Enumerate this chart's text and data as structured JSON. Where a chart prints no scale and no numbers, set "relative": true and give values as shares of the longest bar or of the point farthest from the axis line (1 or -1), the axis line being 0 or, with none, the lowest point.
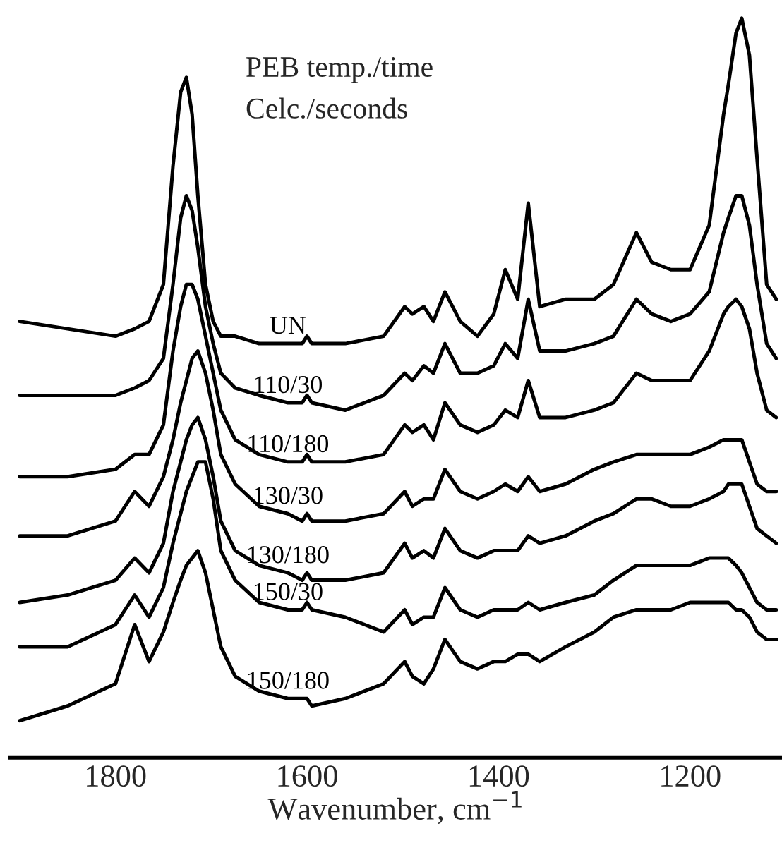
{
  "chart_data": {
    "type": "line",
    "relative": true,
    "xlabel": "Wavenumber, cm$^{−1}$",
    "annotations": [
      "PEB temp./time",
      "Celc./seconds"
    ],
    "xlim": [
      1910,
      1104
    ],
    "xticks": [
      1800,
      1600,
      1400,
      1200
    ],
    "tick_labels": "x",
    "grid": false,
    "legend": false,
    "marker": "none",
    "line_style": "solid",
    "x": [
      1900,
      1850,
      1800,
      1780,
      1765,
      1750,
      1740,
      1732,
      1726,
      1720,
      1714,
      1706,
      1698,
      1690,
      1675,
      1650,
      1620,
      1605,
      1600,
      1595,
      1560,
      1520,
      1498,
      1490,
      1478,
      1468,
      1456,
      1440,
      1422,
      1405,
      1393,
      1380,
      1369,
      1357,
      1330,
      1300,
      1280,
      1256,
      1240,
      1220,
      1200,
      1180,
      1165,
      1160,
      1152,
      1146,
      1138,
      1130,
      1120,
      1110
    ],
    "series": [
      {
        "name": "UN",
        "color": "#000000",
        "values": [
          0.59,
          0.58,
          0.57,
          0.58,
          0.59,
          0.64,
          0.8,
          0.9,
          0.92,
          0.87,
          0.76,
          0.64,
          0.59,
          0.57,
          0.57,
          0.56,
          0.56,
          0.56,
          0.57,
          0.56,
          0.56,
          0.57,
          0.61,
          0.6,
          0.61,
          0.59,
          0.63,
          0.59,
          0.57,
          0.6,
          0.66,
          0.62,
          0.75,
          0.61,
          0.62,
          0.62,
          0.64,
          0.71,
          0.67,
          0.66,
          0.66,
          0.72,
          0.87,
          0.91,
          0.98,
          1.0,
          0.95,
          0.81,
          0.64,
          0.62
        ]
      },
      {
        "name": "110/30",
        "color": "#000000",
        "values": [
          0.49,
          0.49,
          0.49,
          0.5,
          0.51,
          0.54,
          0.64,
          0.73,
          0.76,
          0.74,
          0.69,
          0.61,
          0.56,
          0.52,
          0.5,
          0.49,
          0.48,
          0.48,
          0.49,
          0.48,
          0.47,
          0.49,
          0.52,
          0.51,
          0.53,
          0.52,
          0.56,
          0.52,
          0.52,
          0.53,
          0.56,
          0.54,
          0.62,
          0.55,
          0.55,
          0.56,
          0.57,
          0.62,
          0.6,
          0.59,
          0.6,
          0.63,
          0.71,
          0.73,
          0.76,
          0.76,
          0.72,
          0.64,
          0.56,
          0.54
        ]
      },
      {
        "name": "110/180",
        "color": "#000000",
        "values": [
          0.38,
          0.38,
          0.39,
          0.41,
          0.41,
          0.45,
          0.55,
          0.61,
          0.64,
          0.64,
          0.62,
          0.57,
          0.52,
          0.47,
          0.43,
          0.41,
          0.4,
          0.4,
          0.41,
          0.4,
          0.4,
          0.41,
          0.45,
          0.44,
          0.45,
          0.43,
          0.48,
          0.45,
          0.44,
          0.45,
          0.47,
          0.46,
          0.51,
          0.46,
          0.46,
          0.47,
          0.48,
          0.52,
          0.51,
          0.51,
          0.51,
          0.55,
          0.6,
          0.61,
          0.62,
          0.61,
          0.58,
          0.52,
          0.47,
          0.46
        ]
      },
      {
        "name": "130/30",
        "color": "#000000",
        "values": [
          0.3,
          0.3,
          0.32,
          0.36,
          0.34,
          0.38,
          0.43,
          0.48,
          0.51,
          0.54,
          0.55,
          0.52,
          0.47,
          0.41,
          0.37,
          0.34,
          0.33,
          0.32,
          0.33,
          0.32,
          0.32,
          0.33,
          0.36,
          0.34,
          0.35,
          0.35,
          0.39,
          0.36,
          0.35,
          0.36,
          0.37,
          0.36,
          0.38,
          0.36,
          0.37,
          0.39,
          0.4,
          0.41,
          0.41,
          0.41,
          0.41,
          0.42,
          0.43,
          0.43,
          0.43,
          0.43,
          0.4,
          0.37,
          0.36,
          0.36
        ]
      },
      {
        "name": "130/180",
        "color": "#000000",
        "values": [
          0.21,
          0.22,
          0.24,
          0.27,
          0.25,
          0.29,
          0.36,
          0.4,
          0.43,
          0.45,
          0.46,
          0.43,
          0.38,
          0.32,
          0.28,
          0.26,
          0.25,
          0.24,
          0.25,
          0.24,
          0.24,
          0.25,
          0.29,
          0.27,
          0.28,
          0.27,
          0.31,
          0.28,
          0.27,
          0.28,
          0.28,
          0.28,
          0.3,
          0.29,
          0.3,
          0.32,
          0.33,
          0.35,
          0.35,
          0.34,
          0.34,
          0.35,
          0.36,
          0.37,
          0.37,
          0.37,
          0.34,
          0.31,
          0.3,
          0.29
        ]
      },
      {
        "name": "150/30",
        "color": "#000000",
        "values": [
          0.15,
          0.15,
          0.18,
          0.22,
          0.19,
          0.23,
          0.29,
          0.33,
          0.36,
          0.38,
          0.4,
          0.4,
          0.35,
          0.28,
          0.24,
          0.21,
          0.2,
          0.2,
          0.21,
          0.2,
          0.19,
          0.17,
          0.2,
          0.18,
          0.19,
          0.19,
          0.23,
          0.2,
          0.19,
          0.2,
          0.2,
          0.2,
          0.21,
          0.2,
          0.21,
          0.22,
          0.24,
          0.26,
          0.26,
          0.26,
          0.26,
          0.27,
          0.27,
          0.27,
          0.26,
          0.25,
          0.23,
          0.21,
          0.2,
          0.2
        ]
      },
      {
        "name": "150/180",
        "color": "#000000",
        "values": [
          0.05,
          0.07,
          0.1,
          0.18,
          0.13,
          0.17,
          0.21,
          0.24,
          0.26,
          0.27,
          0.28,
          0.25,
          0.2,
          0.15,
          0.11,
          0.09,
          0.08,
          0.08,
          0.08,
          0.07,
          0.08,
          0.1,
          0.13,
          0.11,
          0.1,
          0.12,
          0.16,
          0.13,
          0.12,
          0.13,
          0.13,
          0.14,
          0.14,
          0.13,
          0.15,
          0.17,
          0.19,
          0.2,
          0.2,
          0.2,
          0.21,
          0.21,
          0.21,
          0.21,
          0.2,
          0.2,
          0.19,
          0.17,
          0.16,
          0.16
        ]
      }
    ]
  }
}
